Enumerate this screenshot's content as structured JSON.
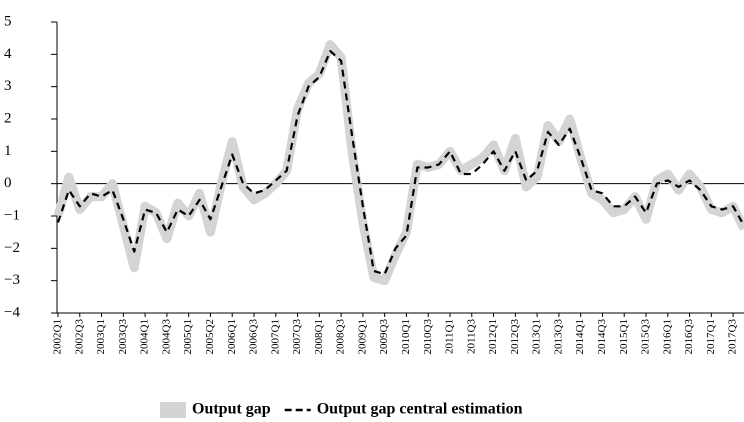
{
  "chart_data": {
    "type": "line",
    "categories": [
      "2002Q1",
      null,
      "2002Q3",
      null,
      "2003Q1",
      null,
      "2003Q3",
      null,
      "2004Q1",
      null,
      "2004Q3",
      null,
      "2005Q1",
      null,
      "2005Q2",
      null,
      "2006Q1",
      null,
      "2006Q3",
      null,
      "2007Q1",
      null,
      "2007Q3",
      null,
      "2008Q1",
      null,
      "2008Q3",
      null,
      "2009Q1",
      null,
      "2009Q3",
      null,
      "2010Q1",
      null,
      "2010Q3",
      null,
      "2011Q1",
      null,
      "2011Q3",
      null,
      "2012Q1",
      null,
      "2012Q3",
      null,
      "2013Q1",
      null,
      "2013Q3",
      null,
      "2014Q1",
      null,
      "2014Q3",
      null,
      "2015Q1",
      null,
      "2015Q3",
      null,
      "2016Q1",
      null,
      "2016Q3",
      null,
      "2017Q1",
      null,
      "2017Q3",
      null
    ],
    "series": [
      {
        "name": "Output gap",
        "color": "#d4d4d4",
        "style": "band",
        "values": [
          -1.0,
          0.2,
          -0.8,
          -0.4,
          -0.4,
          0.0,
          -1.3,
          -2.6,
          -0.7,
          -0.9,
          -1.7,
          -0.6,
          -1.0,
          -0.3,
          -1.5,
          0.0,
          1.3,
          -0.1,
          -0.5,
          -0.3,
          0.0,
          0.4,
          2.3,
          3.1,
          3.4,
          4.3,
          3.9,
          1.0,
          -1.2,
          -2.9,
          -3.0,
          -2.2,
          -1.5,
          0.6,
          0.5,
          0.6,
          1.0,
          0.4,
          0.6,
          0.8,
          1.2,
          0.4,
          1.4,
          -0.1,
          0.2,
          1.8,
          1.3,
          2.0,
          0.8,
          -0.3,
          -0.5,
          -0.9,
          -0.8,
          -0.4,
          -1.1,
          0.1,
          0.3,
          -0.2,
          0.3,
          -0.1,
          -0.8,
          -0.9,
          -0.7,
          -1.4
        ]
      },
      {
        "name": "Output gap central estimation",
        "color": "#000000",
        "style": "dashed",
        "values": [
          -1.2,
          -0.2,
          -0.7,
          -0.3,
          -0.4,
          -0.2,
          -1.1,
          -2.1,
          -0.8,
          -0.9,
          -1.5,
          -0.8,
          -1.0,
          -0.5,
          -1.1,
          -0.1,
          0.9,
          0.0,
          -0.3,
          -0.2,
          0.1,
          0.4,
          2.1,
          3.0,
          3.3,
          4.1,
          3.8,
          1.5,
          -0.7,
          -2.7,
          -2.8,
          -2.0,
          -1.6,
          0.5,
          0.5,
          0.6,
          1.0,
          0.3,
          0.3,
          0.6,
          1.0,
          0.4,
          1.0,
          0.1,
          0.4,
          1.6,
          1.2,
          1.7,
          0.8,
          -0.2,
          -0.3,
          -0.7,
          -0.7,
          -0.4,
          -0.9,
          0.0,
          0.1,
          -0.1,
          0.1,
          -0.2,
          -0.7,
          -0.8,
          -0.7,
          -1.3
        ]
      }
    ],
    "ylim": [
      -4,
      5
    ],
    "yticks": [
      {
        "value": -4,
        "label": "−4"
      },
      {
        "value": -3,
        "label": "−3"
      },
      {
        "value": -2,
        "label": "−2"
      },
      {
        "value": -1,
        "label": "−1"
      },
      0,
      1,
      2,
      3,
      4,
      5
    ],
    "zero_line": true,
    "legend": "bottom"
  }
}
